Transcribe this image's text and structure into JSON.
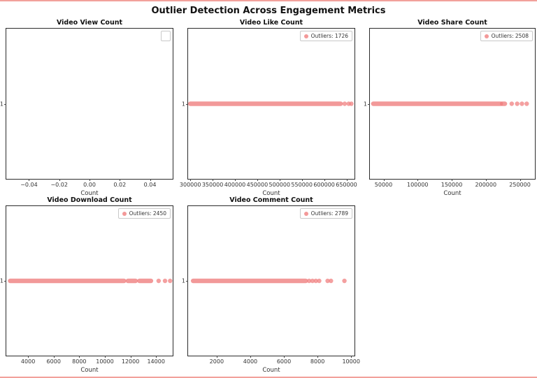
{
  "page": {
    "title": "Outlier Detection Across Engagement Metrics"
  },
  "accent": {
    "marker_color": "#f08080",
    "page_border_color": "#f2a19b",
    "axes_border_color": "#2b2b2b"
  },
  "chart_data": [
    {
      "type": "scatter",
      "title": "Video View Count",
      "xlabel": "Count",
      "ytick": "1",
      "y": 1,
      "xlim": [
        -0.055,
        0.055
      ],
      "xticks": [
        -0.04,
        -0.02,
        0.0,
        0.02,
        0.04
      ],
      "xtick_labels": [
        "−0.04",
        "−0.02",
        "0.00",
        "0.02",
        "0.04"
      ],
      "dense_segments": [],
      "sparse_points": [],
      "legend": {
        "label": ""
      },
      "outlier_count": null,
      "legend_position": "upper right",
      "grid": false
    },
    {
      "type": "scatter",
      "title": "Video Like Count",
      "xlabel": "Count",
      "ytick": "1",
      "y": 1,
      "xlim": [
        295000,
        668000
      ],
      "xticks": [
        300000,
        350000,
        400000,
        450000,
        500000,
        550000,
        600000,
        650000
      ],
      "xtick_labels": [
        "300000",
        "350000",
        "400000",
        "450000",
        "500000",
        "550000",
        "600000",
        "650000"
      ],
      "dense_segments": [
        [
          300000,
          637000
        ]
      ],
      "sparse_points": [
        646000,
        655000,
        661000
      ],
      "legend": {
        "label": "Outliers: 1726"
      },
      "outlier_count": 1726,
      "legend_position": "upper right",
      "grid": false
    },
    {
      "type": "scatter",
      "title": "Video Share Count",
      "xlabel": "Count",
      "ytick": "1",
      "y": 1,
      "xlim": [
        30000,
        272000
      ],
      "xticks": [
        50000,
        100000,
        150000,
        200000,
        250000
      ],
      "xtick_labels": [
        "50000",
        "100000",
        "150000",
        "200000",
        "250000"
      ],
      "dense_segments": [
        [
          35000,
          222000
        ],
        [
          224000,
          228000
        ]
      ],
      "sparse_points": [
        238000,
        246000,
        253000,
        260000
      ],
      "legend": {
        "label": "Outliers: 2508"
      },
      "outlier_count": 2508,
      "legend_position": "upper right",
      "grid": false
    },
    {
      "type": "scatter",
      "title": "Video Download Count",
      "xlabel": "Count",
      "ytick": "1",
      "y": 1,
      "xlim": [
        2300,
        15300
      ],
      "xticks": [
        4000,
        6000,
        8000,
        10000,
        12000,
        14000
      ],
      "xtick_labels": [
        "4000",
        "6000",
        "8000",
        "10000",
        "12000",
        "14000"
      ],
      "dense_segments": [
        [
          2600,
          11500
        ],
        [
          11800,
          12400
        ],
        [
          12700,
          13600
        ]
      ],
      "sparse_points": [
        14200,
        14700,
        15100
      ],
      "legend": {
        "label": "Outliers: 2450"
      },
      "outlier_count": 2450,
      "legend_position": "upper right",
      "grid": false
    },
    {
      "type": "scatter",
      "title": "Video Comment Count",
      "xlabel": "Count",
      "ytick": "1",
      "y": 1,
      "xlim": [
        300,
        10200
      ],
      "xticks": [
        2000,
        4000,
        6000,
        8000,
        10000
      ],
      "xtick_labels": [
        "2000",
        "4000",
        "6000",
        "8000",
        "10000"
      ],
      "dense_segments": [
        [
          600,
          7300
        ]
      ],
      "sparse_points": [
        7500,
        7700,
        7900,
        8100,
        8600,
        8800,
        9600
      ],
      "legend": {
        "label": "Outliers: 2789"
      },
      "outlier_count": 2789,
      "legend_position": "upper right",
      "grid": false
    }
  ]
}
